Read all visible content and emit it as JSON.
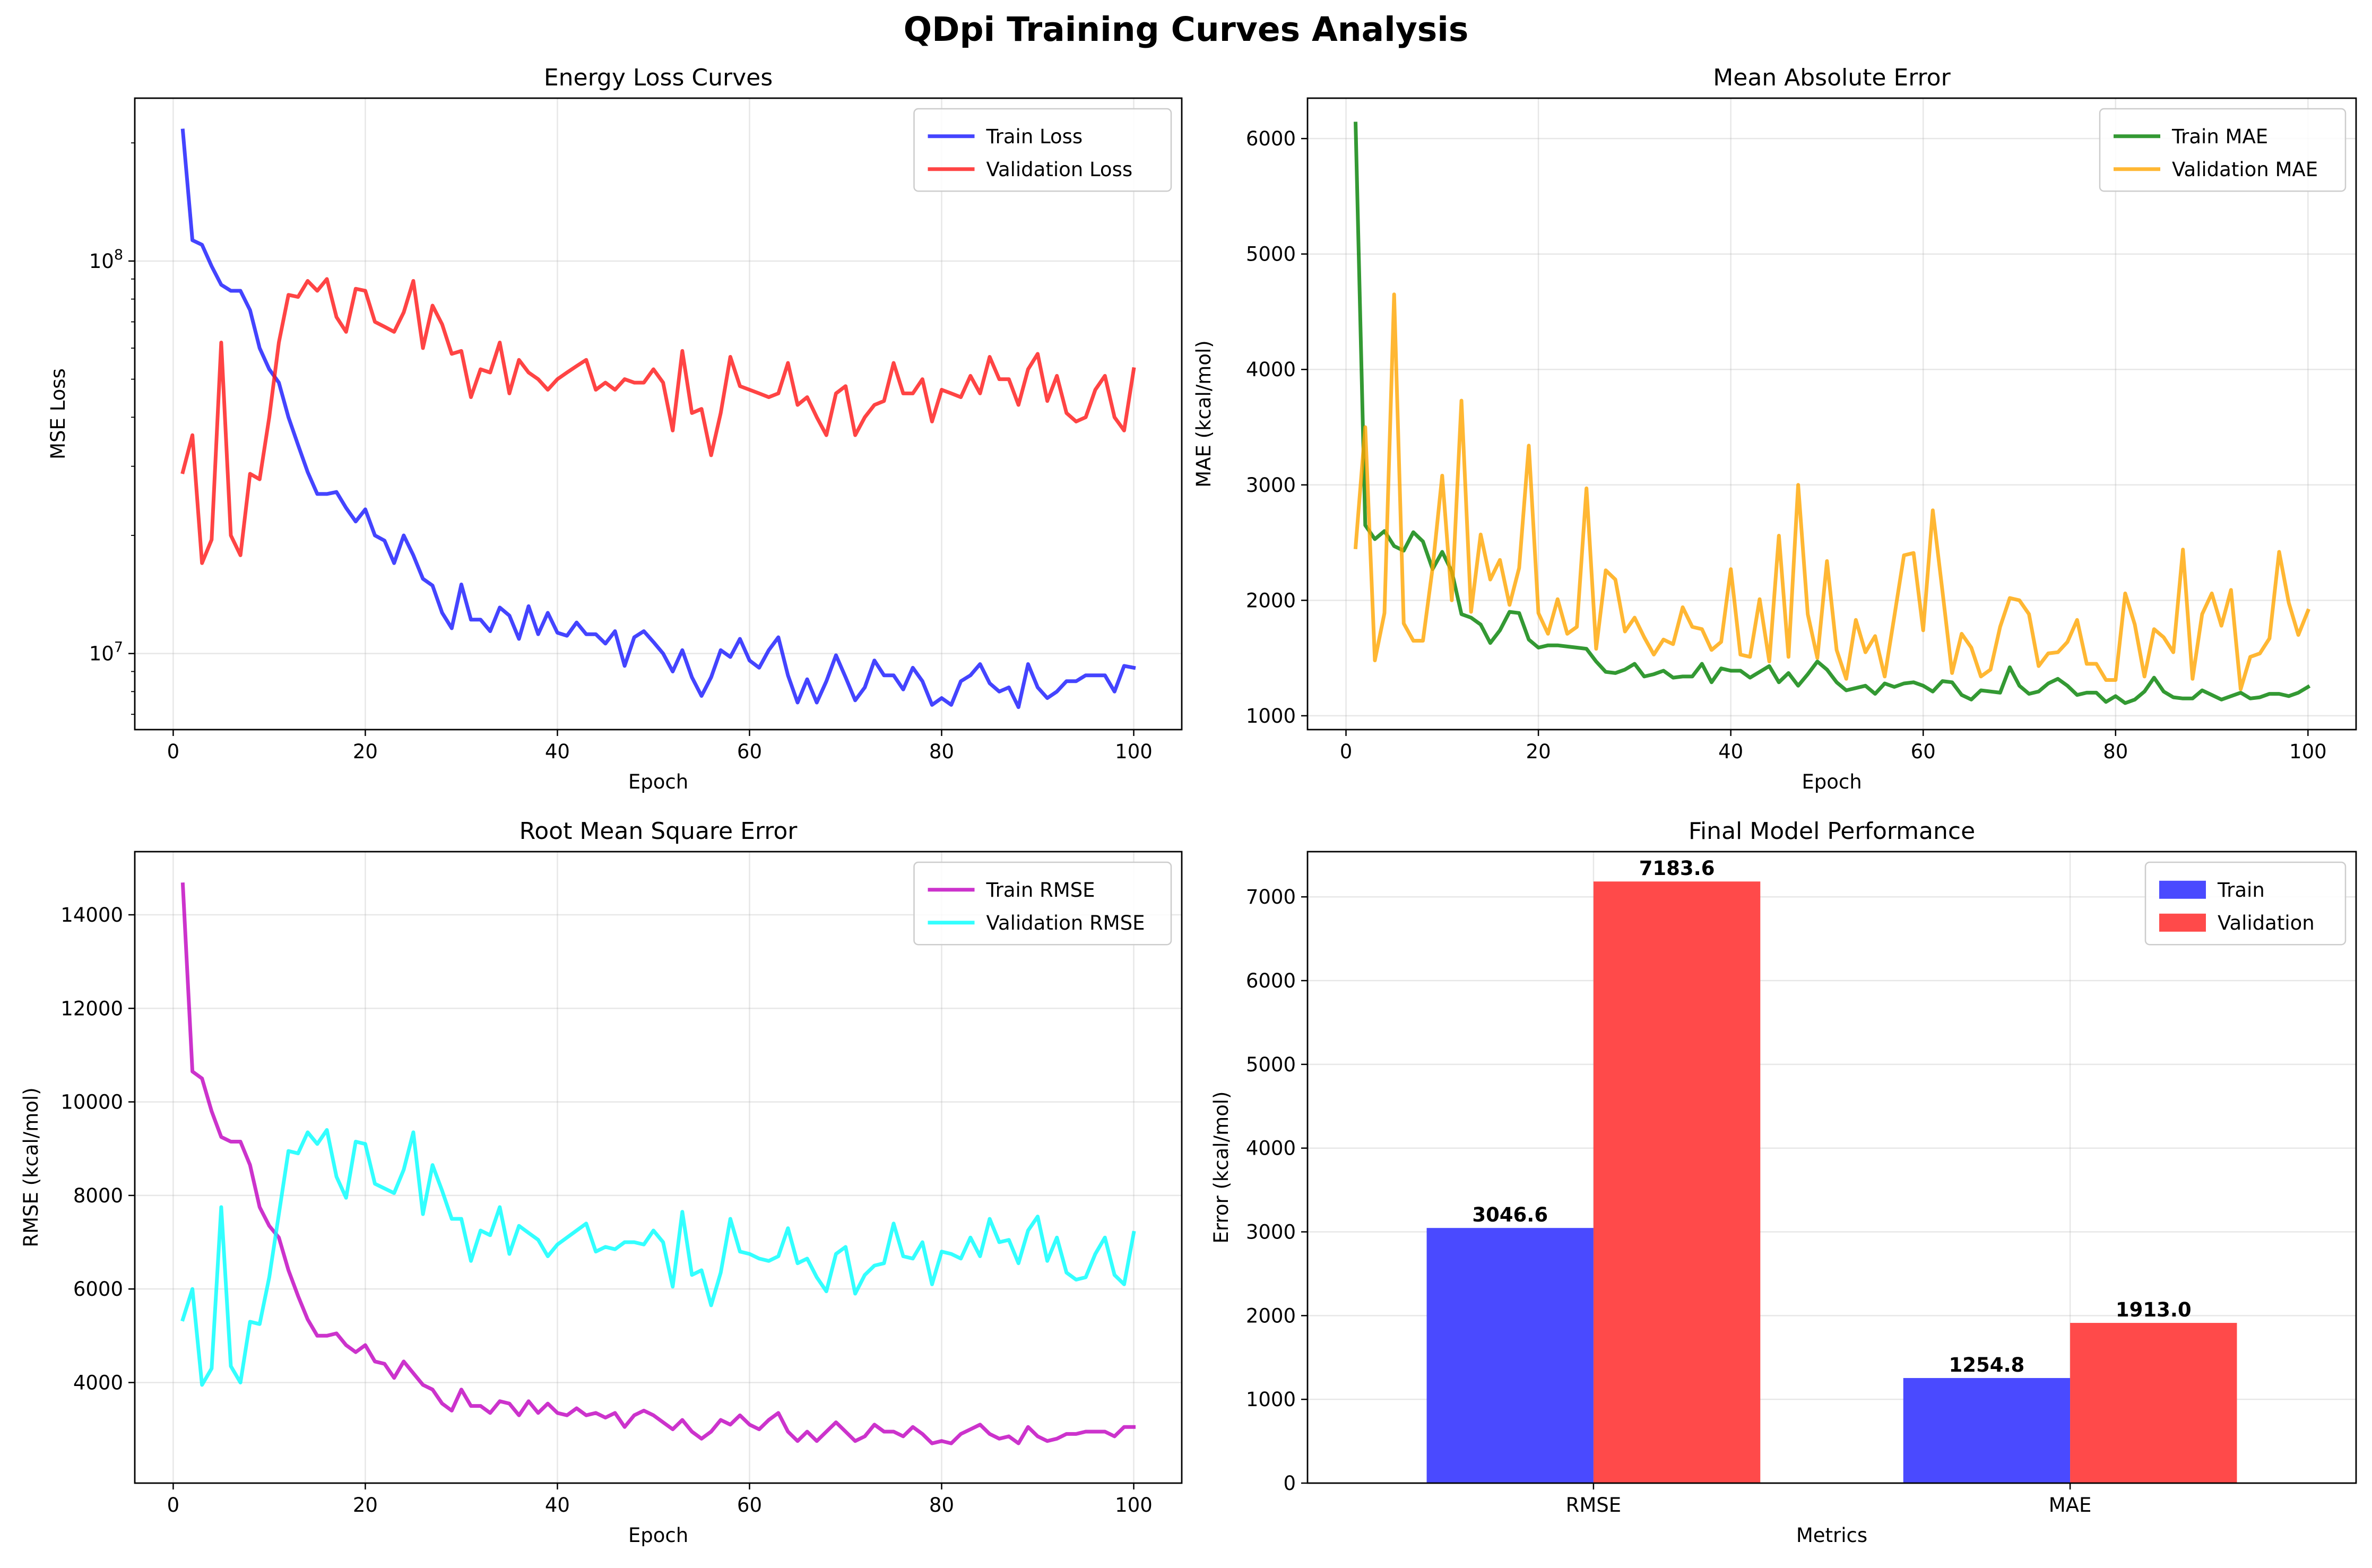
{
  "title": "QDpi Training Curves Analysis",
  "chart_data": [
    {
      "type": "line",
      "title": "Energy Loss Curves",
      "xlabel": "Epoch",
      "ylabel": "MSE Loss",
      "yscale": "log",
      "xlim": [
        -4,
        105
      ],
      "ylim": [
        6400000,
        260000000
      ],
      "xticks": [
        0,
        20,
        40,
        60,
        80,
        100
      ],
      "xtick_labels": [
        "0",
        "20",
        "40",
        "60",
        "80",
        "100"
      ],
      "yticks": [
        10000000,
        100000000
      ],
      "ytick_labels": [
        "10^7",
        "10^8"
      ],
      "legend_position": "upper right",
      "grid": true,
      "x": [
        1,
        2,
        3,
        4,
        5,
        6,
        7,
        8,
        9,
        10,
        11,
        12,
        13,
        14,
        15,
        16,
        17,
        18,
        19,
        20,
        21,
        22,
        23,
        24,
        25,
        26,
        27,
        28,
        29,
        30,
        31,
        32,
        33,
        34,
        35,
        36,
        37,
        38,
        39,
        40,
        41,
        42,
        43,
        44,
        45,
        46,
        47,
        48,
        49,
        50,
        51,
        52,
        53,
        54,
        55,
        56,
        57,
        58,
        59,
        60,
        61,
        62,
        63,
        64,
        65,
        66,
        67,
        68,
        69,
        70,
        71,
        72,
        73,
        74,
        75,
        76,
        77,
        78,
        79,
        80,
        81,
        82,
        83,
        84,
        85,
        86,
        87,
        88,
        89,
        90,
        91,
        92,
        93,
        94,
        95,
        96,
        97,
        98,
        99,
        100
      ],
      "series": [
        {
          "name": "Train Loss",
          "color": "#1515ff",
          "values": [
            215000000,
            113000000,
            110000000,
            97000000,
            87000000,
            84000000,
            84000000,
            75000000,
            60000000,
            53000000,
            49000000,
            40000000,
            34000000,
            29000000,
            25500000,
            25500000,
            25800000,
            23500000,
            21700000,
            23300000,
            20000000,
            19400000,
            17000000,
            20000000,
            17800000,
            15500000,
            14900000,
            12700000,
            11600000,
            15000000,
            12200000,
            12200000,
            11400000,
            13100000,
            12500000,
            10900000,
            13200000,
            11200000,
            12700000,
            11300000,
            11100000,
            12000000,
            11200000,
            11200000,
            10600000,
            11400000,
            9300000,
            11000000,
            11400000,
            10700000,
            10000000,
            9000000,
            10200000,
            8700000,
            7800000,
            8700000,
            10200000,
            9800000,
            10900000,
            9600000,
            9200000,
            10200000,
            11000000,
            8800000,
            7500000,
            8600000,
            7500000,
            8500000,
            9900000,
            8700000,
            7600000,
            8200000,
            9600000,
            8800000,
            8800000,
            8100000,
            9200000,
            8500000,
            7400000,
            7700000,
            7400000,
            8500000,
            8800000,
            9400000,
            8400000,
            8000000,
            8200000,
            7300000,
            9400000,
            8200000,
            7700000,
            8000000,
            8500000,
            8500000,
            8800000,
            8800000,
            8800000,
            8000000,
            9300000,
            9200000
          ]
        },
        {
          "name": "Validation Loss",
          "color": "#ff1515",
          "values": [
            29000000,
            36000000,
            17000000,
            19500000,
            62000000,
            20000000,
            17800000,
            28700000,
            27800000,
            40000000,
            62000000,
            82000000,
            81000000,
            89000000,
            84000000,
            90000000,
            72000000,
            66000000,
            85000000,
            84000000,
            70000000,
            68000000,
            66000000,
            74000000,
            89000000,
            60000000,
            77000000,
            69000000,
            58000000,
            59000000,
            45000000,
            53000000,
            52000000,
            62000000,
            46000000,
            56000000,
            52000000,
            50000000,
            47000000,
            50000000,
            52000000,
            54000000,
            56000000,
            47000000,
            49000000,
            47000000,
            50000000,
            49000000,
            49000000,
            53000000,
            49000000,
            37000000,
            59000000,
            41000000,
            42000000,
            32000000,
            41000000,
            57000000,
            48000000,
            47000000,
            46000000,
            45000000,
            46000000,
            55000000,
            43000000,
            45000000,
            40000000,
            36000000,
            46000000,
            48000000,
            36000000,
            40000000,
            43000000,
            44000000,
            55000000,
            46000000,
            46000000,
            50000000,
            39000000,
            47000000,
            46000000,
            45000000,
            51000000,
            46000000,
            57000000,
            50000000,
            50000000,
            43000000,
            53000000,
            58000000,
            44000000,
            51000000,
            41000000,
            39000000,
            40000000,
            47000000,
            51000000,
            40000000,
            37000000,
            53000000
          ]
        }
      ]
    },
    {
      "type": "line",
      "title": "Mean Absolute Error",
      "xlabel": "Epoch",
      "ylabel": "MAE (kcal/mol)",
      "xlim": [
        -4,
        105
      ],
      "ylim": [
        880,
        6350
      ],
      "xticks": [
        0,
        20,
        40,
        60,
        80,
        100
      ],
      "xtick_labels": [
        "0",
        "20",
        "40",
        "60",
        "80",
        "100"
      ],
      "yticks": [
        1000,
        2000,
        3000,
        4000,
        5000,
        6000
      ],
      "ytick_labels": [
        "1000",
        "2000",
        "3000",
        "4000",
        "5000",
        "6000"
      ],
      "legend_position": "upper right",
      "grid": true,
      "x": [
        1,
        2,
        3,
        4,
        5,
        6,
        7,
        8,
        9,
        10,
        11,
        12,
        13,
        14,
        15,
        16,
        17,
        18,
        19,
        20,
        21,
        22,
        23,
        24,
        25,
        26,
        27,
        28,
        29,
        30,
        31,
        32,
        33,
        34,
        35,
        36,
        37,
        38,
        39,
        40,
        41,
        42,
        43,
        44,
        45,
        46,
        47,
        48,
        49,
        50,
        51,
        52,
        53,
        54,
        55,
        56,
        57,
        58,
        59,
        60,
        61,
        62,
        63,
        64,
        65,
        66,
        67,
        68,
        69,
        70,
        71,
        72,
        73,
        74,
        75,
        76,
        77,
        78,
        79,
        80,
        81,
        82,
        83,
        84,
        85,
        86,
        87,
        88,
        89,
        90,
        91,
        92,
        93,
        94,
        95,
        96,
        97,
        98,
        99,
        100
      ],
      "series": [
        {
          "name": "Train MAE",
          "color": "#008000",
          "values": [
            6130,
            2650,
            2530,
            2600,
            2470,
            2430,
            2590,
            2510,
            2270,
            2420,
            2250,
            1880,
            1850,
            1790,
            1630,
            1740,
            1900,
            1890,
            1660,
            1590,
            1610,
            1610,
            1600,
            1590,
            1580,
            1470,
            1380,
            1370,
            1400,
            1450,
            1340,
            1360,
            1390,
            1330,
            1340,
            1340,
            1450,
            1290,
            1410,
            1390,
            1390,
            1330,
            1380,
            1430,
            1290,
            1370,
            1260,
            1360,
            1470,
            1400,
            1290,
            1220,
            1240,
            1260,
            1190,
            1280,
            1250,
            1280,
            1290,
            1260,
            1210,
            1300,
            1290,
            1180,
            1140,
            1220,
            1210,
            1200,
            1420,
            1260,
            1190,
            1210,
            1280,
            1320,
            1260,
            1180,
            1200,
            1200,
            1120,
            1170,
            1110,
            1140,
            1210,
            1330,
            1210,
            1160,
            1150,
            1150,
            1220,
            1180,
            1140,
            1170,
            1200,
            1150,
            1160,
            1190,
            1190,
            1170,
            1200,
            1250
          ]
        },
        {
          "name": "Validation MAE",
          "color": "#ffa500",
          "values": [
            2460,
            3500,
            1480,
            1890,
            4650,
            1800,
            1650,
            1650,
            2280,
            3080,
            2000,
            3730,
            1900,
            2570,
            2180,
            2350,
            1960,
            2280,
            3340,
            1890,
            1710,
            2010,
            1710,
            1770,
            2970,
            1580,
            2260,
            2180,
            1730,
            1850,
            1680,
            1530,
            1660,
            1620,
            1940,
            1770,
            1750,
            1570,
            1640,
            2270,
            1530,
            1510,
            2010,
            1470,
            2560,
            1510,
            3000,
            1880,
            1500,
            2340,
            1570,
            1320,
            1830,
            1550,
            1690,
            1340,
            1860,
            2390,
            2410,
            1740,
            2780,
            2080,
            1370,
            1710,
            1590,
            1340,
            1400,
            1770,
            2020,
            2000,
            1880,
            1430,
            1540,
            1550,
            1640,
            1830,
            1450,
            1450,
            1310,
            1310,
            2060,
            1790,
            1340,
            1750,
            1680,
            1550,
            2440,
            1320,
            1880,
            2060,
            1780,
            2090,
            1230,
            1510,
            1540,
            1670,
            2420,
            1980,
            1700,
            1910
          ]
        }
      ]
    },
    {
      "type": "line",
      "title": "Root Mean Square Error",
      "xlabel": "Epoch",
      "ylabel": "RMSE (kcal/mol)",
      "xlim": [
        -4,
        105
      ],
      "ylim": [
        1850,
        15350
      ],
      "xticks": [
        0,
        20,
        40,
        60,
        80,
        100
      ],
      "xtick_labels": [
        "0",
        "20",
        "40",
        "60",
        "80",
        "100"
      ],
      "yticks": [
        4000,
        6000,
        8000,
        10000,
        12000,
        14000
      ],
      "ytick_labels": [
        "4000",
        "6000",
        "8000",
        "10000",
        "12000",
        "14000"
      ],
      "legend_position": "upper right",
      "grid": true,
      "x": [
        1,
        2,
        3,
        4,
        5,
        6,
        7,
        8,
        9,
        10,
        11,
        12,
        13,
        14,
        15,
        16,
        17,
        18,
        19,
        20,
        21,
        22,
        23,
        24,
        25,
        26,
        27,
        28,
        29,
        30,
        31,
        32,
        33,
        34,
        35,
        36,
        37,
        38,
        39,
        40,
        41,
        42,
        43,
        44,
        45,
        46,
        47,
        48,
        49,
        50,
        51,
        52,
        53,
        54,
        55,
        56,
        57,
        58,
        59,
        60,
        61,
        62,
        63,
        64,
        65,
        66,
        67,
        68,
        69,
        70,
        71,
        72,
        73,
        74,
        75,
        76,
        77,
        78,
        79,
        80,
        81,
        82,
        83,
        84,
        85,
        86,
        87,
        88,
        89,
        90,
        91,
        92,
        93,
        94,
        95,
        96,
        97,
        98,
        99,
        100
      ],
      "series": [
        {
          "name": "Train RMSE",
          "color": "#bf00bf",
          "values": [
            14650,
            10650,
            10500,
            9800,
            9250,
            9150,
            9150,
            8650,
            7750,
            7350,
            7100,
            6400,
            5850,
            5350,
            5000,
            5000,
            5050,
            4800,
            4650,
            4800,
            4450,
            4400,
            4100,
            4450,
            4200,
            3950,
            3850,
            3550,
            3400,
            3850,
            3500,
            3500,
            3350,
            3600,
            3550,
            3300,
            3600,
            3350,
            3550,
            3350,
            3300,
            3450,
            3300,
            3350,
            3250,
            3350,
            3050,
            3300,
            3400,
            3300,
            3150,
            3000,
            3200,
            2950,
            2800,
            2950,
            3200,
            3100,
            3300,
            3100,
            3000,
            3200,
            3350,
            2950,
            2750,
            2950,
            2750,
            2950,
            3150,
            2950,
            2750,
            2850,
            3100,
            2950,
            2950,
            2850,
            3050,
            2900,
            2700,
            2750,
            2700,
            2900,
            3000,
            3100,
            2900,
            2800,
            2850,
            2700,
            3050,
            2850,
            2750,
            2800,
            2900,
            2900,
            2950,
            2950,
            2950,
            2850,
            3050,
            3050
          ]
        },
        {
          "name": "Validation RMSE",
          "color": "#00ffff",
          "values": [
            5350,
            6000,
            3950,
            4300,
            7750,
            4350,
            4000,
            5300,
            5250,
            6250,
            7600,
            8950,
            8900,
            9350,
            9100,
            9400,
            8400,
            7950,
            9150,
            9100,
            8250,
            8150,
            8050,
            8550,
            9350,
            7600,
            8650,
            8100,
            7500,
            7500,
            6600,
            7250,
            7150,
            7750,
            6750,
            7350,
            7200,
            7050,
            6700,
            6950,
            7100,
            7250,
            7400,
            6800,
            6900,
            6850,
            7000,
            7000,
            6950,
            7250,
            7000,
            6050,
            7650,
            6300,
            6400,
            5650,
            6350,
            7500,
            6800,
            6750,
            6650,
            6600,
            6700,
            7300,
            6550,
            6650,
            6250,
            5950,
            6750,
            6900,
            5900,
            6300,
            6500,
            6550,
            7400,
            6700,
            6650,
            7000,
            6100,
            6800,
            6750,
            6650,
            7100,
            6700,
            7500,
            7000,
            7050,
            6550,
            7250,
            7550,
            6600,
            7100,
            6350,
            6200,
            6250,
            6750,
            7100,
            6300,
            6100,
            7200
          ]
        }
      ]
    },
    {
      "type": "bar",
      "title": "Final Model Performance",
      "xlabel": "Metrics",
      "ylabel": "Error (kcal/mol)",
      "categories": [
        "RMSE",
        "MAE"
      ],
      "ylim": [
        0,
        7540
      ],
      "yticks": [
        0,
        1000,
        2000,
        3000,
        4000,
        5000,
        6000,
        7000
      ],
      "ytick_labels": [
        "0",
        "1000",
        "2000",
        "3000",
        "4000",
        "5000",
        "6000",
        "7000"
      ],
      "legend_position": "upper right",
      "grid": true,
      "series": [
        {
          "name": "Train",
          "color": "#4a4aff",
          "values": [
            3046.6,
            1254.8
          ],
          "labels": [
            "3046.6",
            "1254.8"
          ]
        },
        {
          "name": "Validation",
          "color": "#ff4a4a",
          "values": [
            7183.6,
            1913.0
          ],
          "labels": [
            "7183.6",
            "1913.0"
          ]
        }
      ]
    }
  ]
}
